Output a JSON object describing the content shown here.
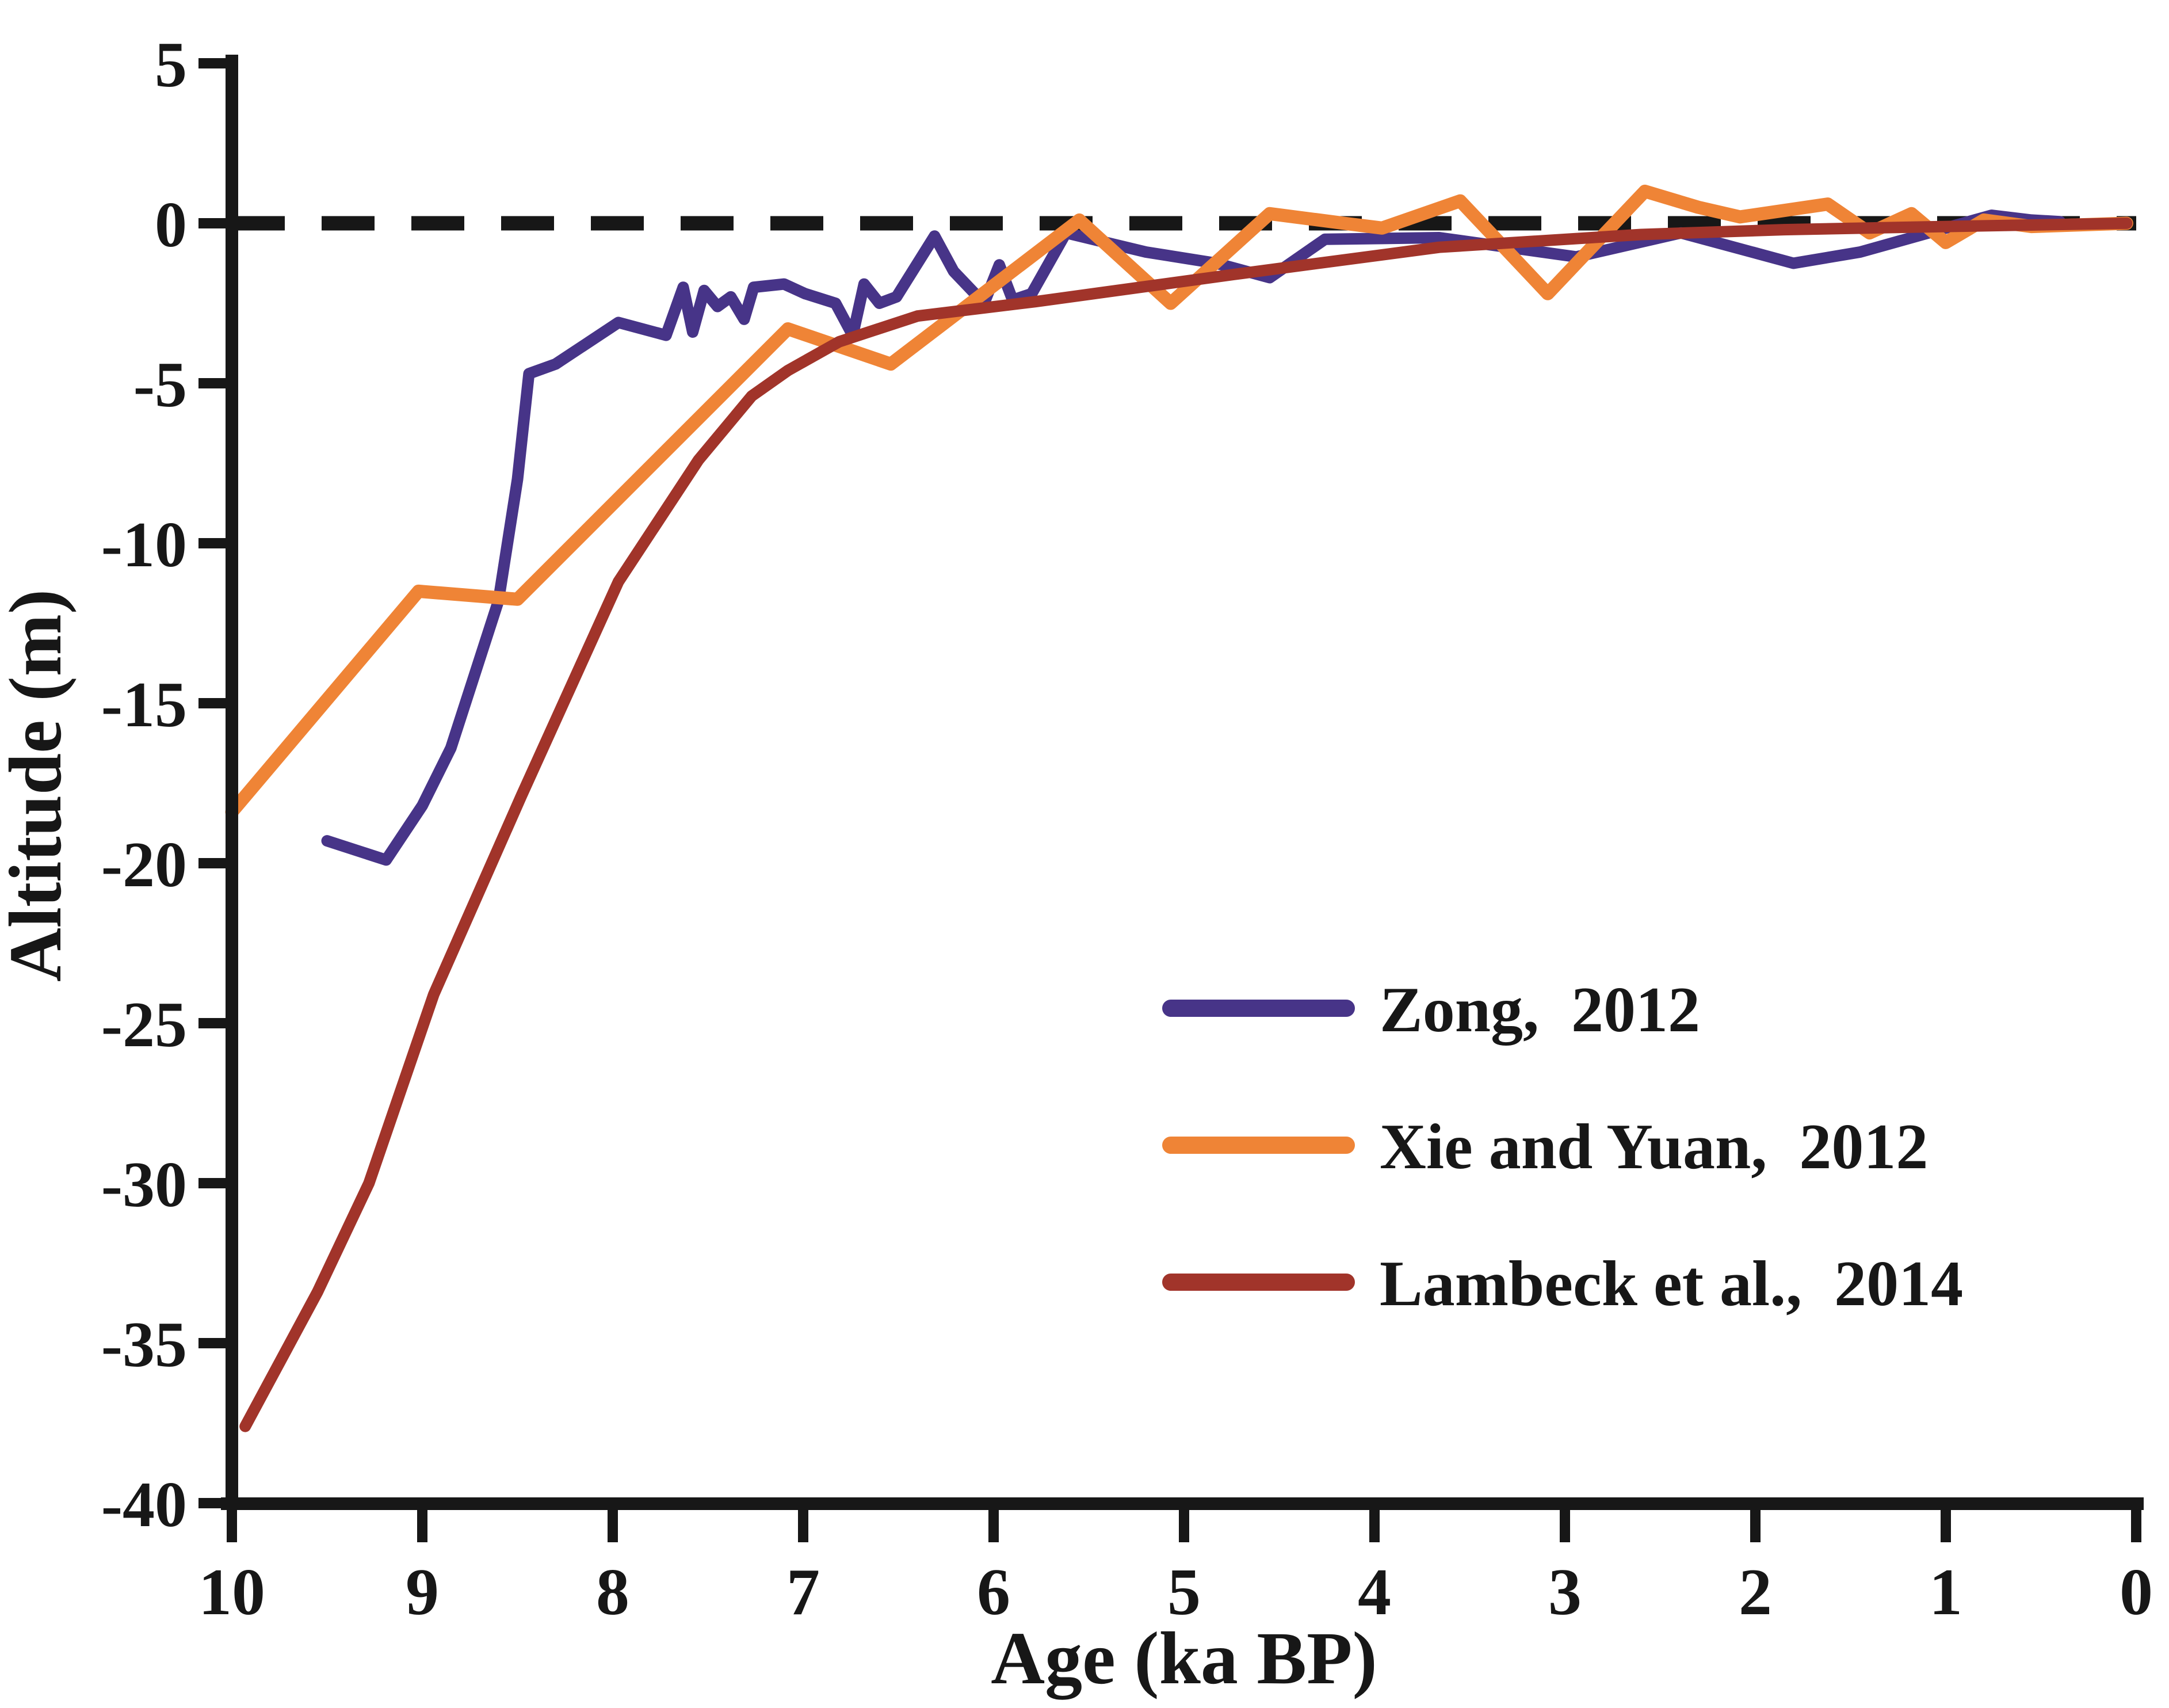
{
  "figure": {
    "background": "#ffffff",
    "axis_color": "#171717",
    "x_axis_title": "Age (ka BP)",
    "y_axis_title": "Altitude (m)"
  },
  "legend": {
    "items": [
      {
        "label": "Zong,  2012",
        "color": "#473488"
      },
      {
        "label": "Xie and Yuan,  2012",
        "color": "#EF8436"
      },
      {
        "label": "Lambeck et al.,  2014",
        "color": "#A1342A"
      }
    ]
  },
  "chart_data": {
    "type": "line",
    "title": "",
    "xlabel": "Age (ka BP)",
    "ylabel": "Altitude (m)",
    "xlim": [
      10,
      0
    ],
    "ylim": [
      -40,
      5
    ],
    "x_axis_reversed": true,
    "grid": false,
    "legend_position": "center-right",
    "x_ticks": [
      10,
      9,
      8,
      7,
      6,
      5,
      4,
      3,
      2,
      1,
      0
    ],
    "y_ticks": [
      5,
      0,
      -5,
      -10,
      -15,
      -20,
      -25,
      -30,
      -35,
      -40
    ],
    "zero_reference_line": {
      "value": 0,
      "style": "dashed",
      "color": "#171717"
    },
    "series": [
      {
        "name": "Zong,  2012",
        "color": "#473488",
        "points": [
          [
            9.5,
            -19.3
          ],
          [
            9.19,
            -19.9
          ],
          [
            9.0,
            -18.2
          ],
          [
            8.85,
            -16.4
          ],
          [
            8.6,
            -11.8
          ],
          [
            8.5,
            -8.0
          ],
          [
            8.44,
            -4.7
          ],
          [
            8.3,
            -4.4
          ],
          [
            7.97,
            -3.1
          ],
          [
            7.72,
            -3.5
          ],
          [
            7.63,
            -2.0
          ],
          [
            7.58,
            -3.4
          ],
          [
            7.52,
            -2.1
          ],
          [
            7.45,
            -2.6
          ],
          [
            7.38,
            -2.3
          ],
          [
            7.31,
            -3.0
          ],
          [
            7.26,
            -2.0
          ],
          [
            7.1,
            -1.9
          ],
          [
            6.99,
            -2.2
          ],
          [
            6.83,
            -2.5
          ],
          [
            6.74,
            -3.5
          ],
          [
            6.68,
            -1.9
          ],
          [
            6.6,
            -2.5
          ],
          [
            6.51,
            -2.3
          ],
          [
            6.31,
            -0.4
          ],
          [
            6.21,
            -1.5
          ],
          [
            6.05,
            -2.5
          ],
          [
            5.97,
            -1.3
          ],
          [
            5.9,
            -2.4
          ],
          [
            5.8,
            -2.2
          ],
          [
            5.62,
            -0.3
          ],
          [
            5.2,
            -0.9
          ],
          [
            4.83,
            -1.25
          ],
          [
            4.55,
            -1.7
          ],
          [
            4.26,
            -0.5
          ],
          [
            3.66,
            -0.45
          ],
          [
            2.94,
            -1.05
          ],
          [
            2.39,
            -0.3
          ],
          [
            1.8,
            -1.25
          ],
          [
            1.45,
            -0.9
          ],
          [
            0.76,
            0.25
          ],
          [
            0.55,
            0.1
          ],
          [
            0.4,
            0.05
          ]
        ]
      },
      {
        "name": "Xie and Yuan,  2012",
        "color": "#EF8436",
        "points": [
          [
            10.0,
            -18.4
          ],
          [
            9.02,
            -11.5
          ],
          [
            8.5,
            -11.75
          ],
          [
            7.08,
            -3.3
          ],
          [
            6.54,
            -4.4
          ],
          [
            5.55,
            0.1
          ],
          [
            5.07,
            -2.5
          ],
          [
            4.55,
            0.3
          ],
          [
            4.16,
            0.0
          ],
          [
            3.96,
            -0.15
          ],
          [
            3.55,
            0.7
          ],
          [
            3.09,
            -2.2
          ],
          [
            2.58,
            1.0
          ],
          [
            2.3,
            0.5
          ],
          [
            2.08,
            0.2
          ],
          [
            1.62,
            0.6
          ],
          [
            1.4,
            -0.3
          ],
          [
            1.18,
            0.3
          ],
          [
            1.0,
            -0.6
          ],
          [
            0.8,
            0.1
          ],
          [
            0.55,
            -0.1
          ],
          [
            0.05,
            0.0
          ]
        ]
      },
      {
        "name": "Lambeck et al.,  2014",
        "color": "#A1342A",
        "points": [
          [
            9.93,
            -37.6
          ],
          [
            9.55,
            -33.4
          ],
          [
            9.28,
            -30.0
          ],
          [
            8.94,
            -24.1
          ],
          [
            8.48,
            -17.9
          ],
          [
            7.97,
            -11.2
          ],
          [
            7.55,
            -7.4
          ],
          [
            7.27,
            -5.4
          ],
          [
            7.08,
            -4.6
          ],
          [
            6.81,
            -3.7
          ],
          [
            6.4,
            -2.9
          ],
          [
            5.78,
            -2.45
          ],
          [
            4.74,
            -1.6
          ],
          [
            3.66,
            -0.75
          ],
          [
            2.6,
            -0.35
          ],
          [
            1.85,
            -0.2
          ],
          [
            1.0,
            -0.1
          ],
          [
            0.05,
            0.0
          ]
        ]
      }
    ]
  }
}
